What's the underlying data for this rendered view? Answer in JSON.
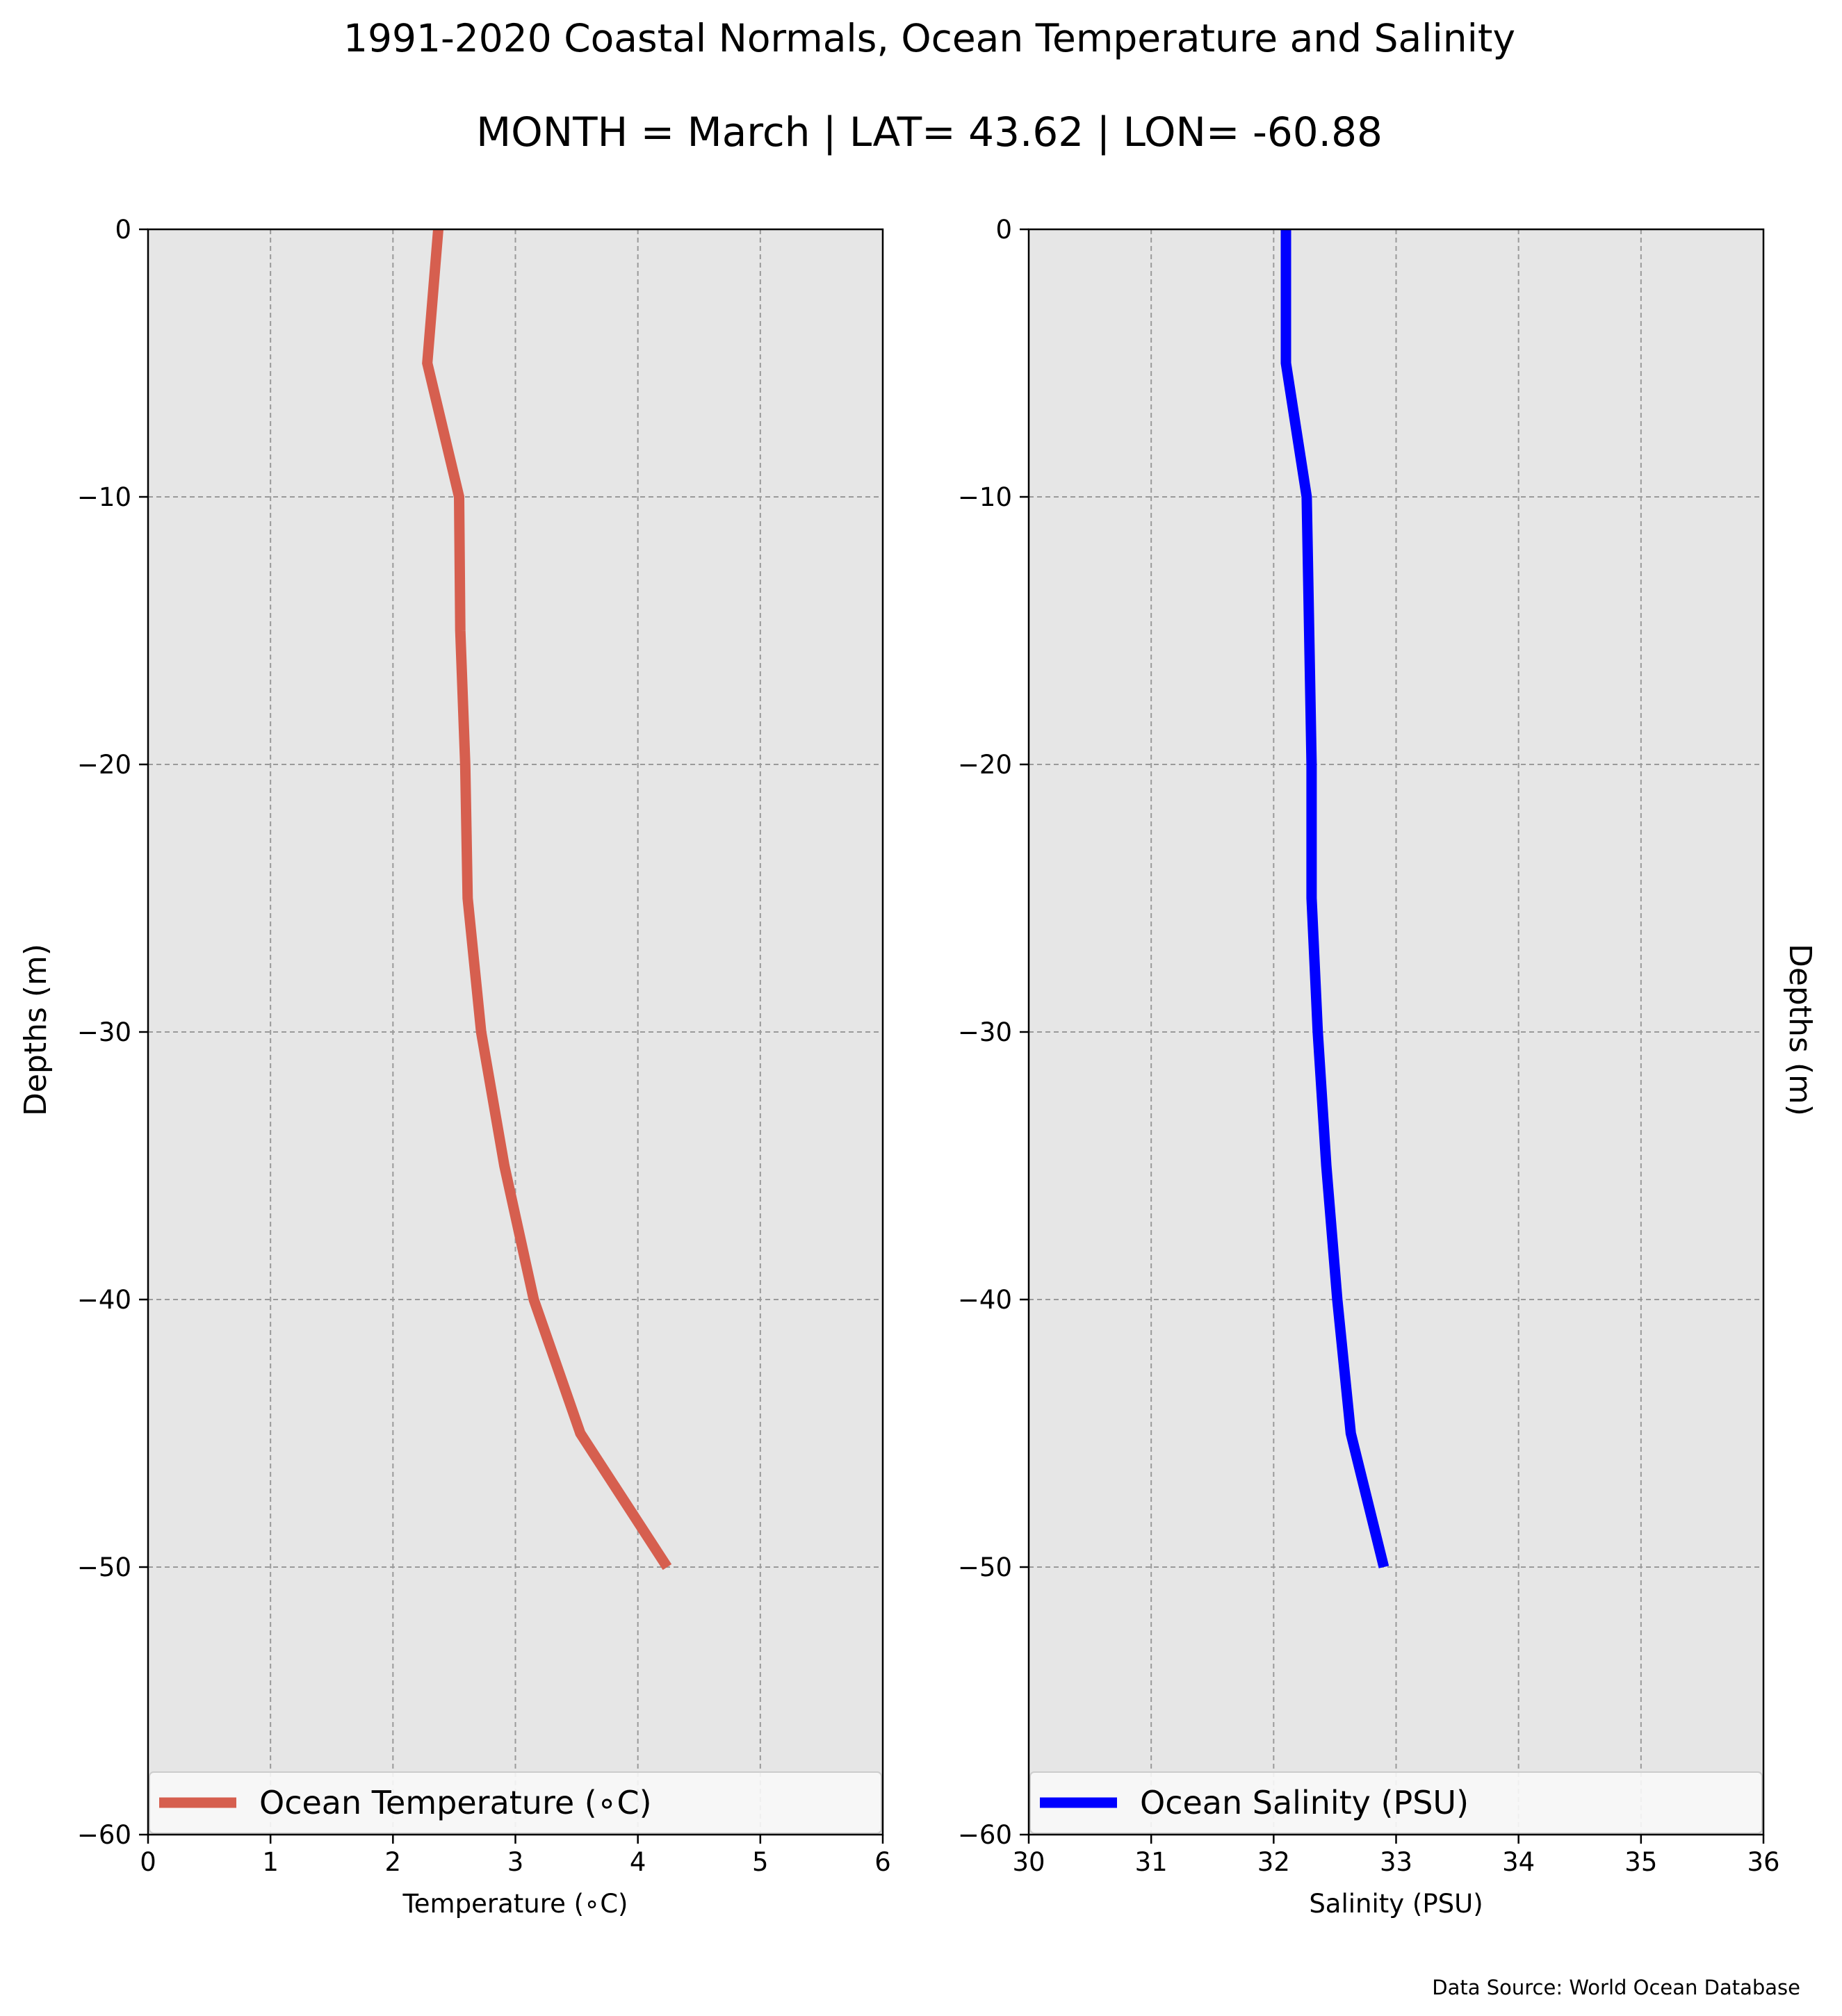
{
  "title": "1991-2020 Coastal Normals, Ocean Temperature and Salinity",
  "subtitle": "MONTH = March | LAT= 43.62 | LON= -60.88",
  "source_note": "Data Source: World Ocean Database",
  "colors": {
    "background": "#ffffff",
    "plot_face": "#e6e6e6",
    "grid": "#9a9a9a",
    "temperature_line": "#d65f4f",
    "salinity_line": "#0000ff",
    "legend_face": "#f8f8f8",
    "legend_edge": "#cccccc"
  },
  "chart_data": [
    {
      "type": "line",
      "xlabel": "Temperature (∘C)",
      "ylabel": "Depths (m)",
      "xlim": [
        0,
        6
      ],
      "ylim": [
        -60,
        0
      ],
      "xticks": [
        0,
        1,
        2,
        3,
        4,
        5,
        6
      ],
      "yticks": [
        0,
        -10,
        -20,
        -30,
        -40,
        -50,
        -60
      ],
      "xtick_labels": [
        "0",
        "1",
        "2",
        "3",
        "4",
        "5",
        "6"
      ],
      "ytick_labels": [
        "0",
        "−10",
        "−20",
        "−30",
        "−40",
        "−50",
        "−60"
      ],
      "grid": true,
      "legend_position": "bottom",
      "series": [
        {
          "name": "Ocean Temperature (∘C)",
          "color": "#d65f4f",
          "x": [
            2.37,
            2.28,
            2.54,
            2.55,
            2.59,
            2.61,
            2.72,
            2.91,
            3.15,
            3.53,
            4.24
          ],
          "y": [
            0,
            -5,
            -10,
            -15,
            -20,
            -25,
            -30,
            -35,
            -40,
            -45,
            -50
          ]
        }
      ]
    },
    {
      "type": "line",
      "xlabel": "Salinity (PSU)",
      "ylabel": "Depths (m)",
      "xlim": [
        30,
        36
      ],
      "ylim": [
        -60,
        0
      ],
      "xticks": [
        30,
        31,
        32,
        33,
        34,
        35,
        36
      ],
      "yticks": [
        0,
        -10,
        -20,
        -30,
        -40,
        -50,
        -60
      ],
      "xtick_labels": [
        "30",
        "31",
        "32",
        "33",
        "34",
        "35",
        "36"
      ],
      "ytick_labels": [
        "0",
        "−10",
        "−20",
        "−30",
        "−40",
        "−50",
        "−60"
      ],
      "grid": true,
      "legend_position": "bottom",
      "series": [
        {
          "name": "Ocean Salinity (PSU)",
          "color": "#0000ff",
          "x": [
            32.1,
            32.1,
            32.27,
            32.29,
            32.31,
            32.31,
            32.36,
            32.43,
            32.52,
            32.63,
            32.9
          ],
          "y": [
            0,
            -5,
            -10,
            -15,
            -20,
            -25,
            -30,
            -35,
            -40,
            -45,
            -50
          ]
        }
      ]
    }
  ]
}
